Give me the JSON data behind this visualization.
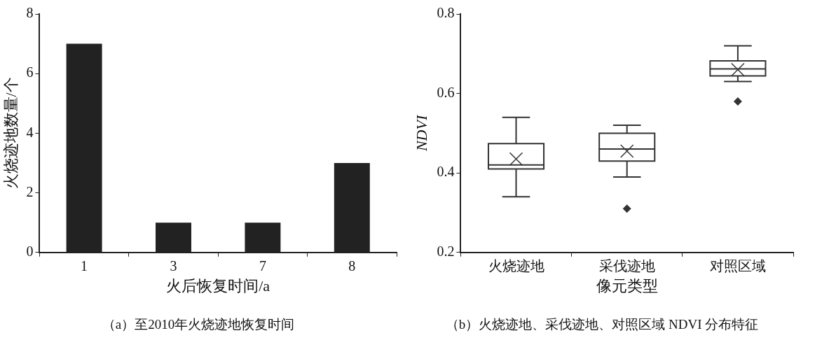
{
  "chart_data": [
    {
      "type": "bar",
      "title": "（a）至2010年火烧迹地恢复时间",
      "xlabel": "火后恢复时间/a",
      "ylabel": "火烧迹地数量/个",
      "categories": [
        "1",
        "3",
        "7",
        "8"
      ],
      "values": [
        7,
        1,
        1,
        3
      ],
      "color": "#222222",
      "ylim": [
        0,
        8
      ],
      "yticks": [
        0,
        2,
        4,
        6,
        8
      ]
    },
    {
      "type": "box",
      "title": "（b）火烧迹地、采伐迹地、对照区域 NDVI 分布特征",
      "xlabel": "像元类型",
      "ylabel": "NDVI",
      "categories": [
        "火烧迹地",
        "采伐迹地",
        "对照区域"
      ],
      "color": "#333333",
      "ylim": [
        0.2,
        0.8
      ],
      "yticks": [
        0.2,
        0.4,
        0.6,
        0.8
      ],
      "boxes": [
        {
          "low": 0.34,
          "q1": 0.41,
          "median": 0.42,
          "q3": 0.474,
          "high": 0.54,
          "mean": 0.435
        },
        {
          "low": 0.39,
          "q1": 0.43,
          "median": 0.46,
          "q3": 0.5,
          "high": 0.52,
          "mean": 0.455,
          "outliers": [
            0.31
          ]
        },
        {
          "low": 0.63,
          "q1": 0.644,
          "median": 0.662,
          "q3": 0.682,
          "high": 0.72,
          "mean": 0.66,
          "outliers": [
            0.58
          ]
        }
      ]
    }
  ]
}
